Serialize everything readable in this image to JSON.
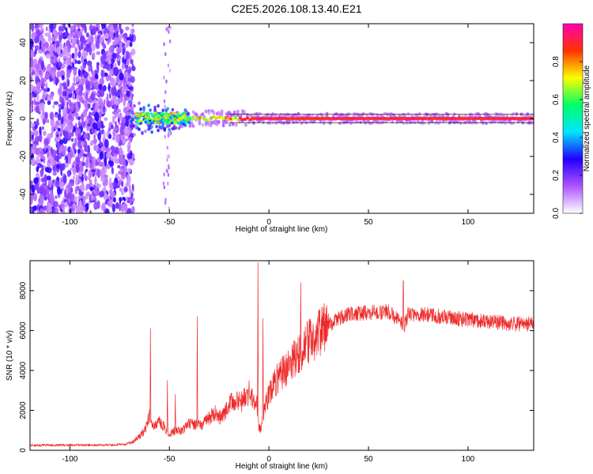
{
  "title": "C2E5.2026.108.13.40.E21",
  "chart_data": [
    {
      "type": "heatmap",
      "xlabel": "Height of straight line (km)",
      "ylabel": "Frequency (Hz)",
      "xlim": [
        -120,
        133
      ],
      "ylim": [
        -50,
        50
      ],
      "x_ticks": [
        -100,
        -50,
        0,
        50,
        100
      ],
      "y_ticks": [
        -40,
        -20,
        0,
        20,
        40
      ],
      "grid": false,
      "colorbar": {
        "label": "Normalized spectral amplitude",
        "range": [
          0,
          1
        ],
        "ticks": [
          "0.0",
          "0.2",
          "0.4",
          "0.6",
          "0.8"
        ],
        "colors": [
          "#ffffff",
          "#ad54ff",
          "#2200ff",
          "#00e5ff",
          "#00ff66",
          "#fcff00",
          "#ff3300",
          "#ff00b0"
        ]
      },
      "features": [
        {
          "name": "noise",
          "x_range": [
            -120,
            -70
          ],
          "y_range": [
            -50,
            50
          ],
          "amplitude": 0.2
        },
        {
          "name": "signal",
          "x_range": [
            -70,
            133
          ],
          "frequency": 0,
          "amplitude": 1.0
        }
      ]
    },
    {
      "type": "line",
      "xlabel": "Height of straight line (km)",
      "ylabel": "SNR (10 * v/v)",
      "xlim": [
        -120,
        133
      ],
      "ylim": [
        0,
        9500
      ],
      "x_ticks": [
        -100,
        -50,
        0,
        50,
        100
      ],
      "y_ticks": [
        0,
        2000,
        4000,
        6000,
        8000
      ],
      "color": "#ee2b2b",
      "grid": false,
      "envelope": {
        "x": [
          -120,
          -100,
          -80,
          -72,
          -68,
          -65,
          -62,
          -60,
          -58,
          -55,
          -52,
          -50,
          -47,
          -44,
          -40,
          -37,
          -34,
          -30,
          -27,
          -24,
          -20,
          -17,
          -14,
          -10,
          -8,
          -6,
          -5,
          -4,
          -3,
          -2,
          0,
          2,
          5,
          8,
          10,
          13,
          16,
          20,
          25,
          30,
          35,
          40,
          50,
          60,
          68,
          70,
          80,
          90,
          100,
          110,
          120,
          133
        ],
        "y": [
          250,
          260,
          270,
          300,
          450,
          700,
          1050,
          1800,
          1200,
          1400,
          1100,
          800,
          1000,
          950,
          1350,
          1300,
          1250,
          1600,
          1900,
          1600,
          2300,
          2500,
          2400,
          2900,
          2600,
          2300,
          1100,
          1000,
          1700,
          2200,
          2800,
          3200,
          3700,
          4000,
          4200,
          4600,
          4900,
          5400,
          5900,
          6300,
          6600,
          6800,
          6900,
          6950,
          6200,
          6850,
          6800,
          6650,
          6550,
          6450,
          6350,
          6300
        ]
      },
      "spikes": [
        {
          "x": -59.5,
          "y": 6100
        },
        {
          "x": -51,
          "y": 3500
        },
        {
          "x": -47,
          "y": 2800
        },
        {
          "x": -36,
          "y": 6700
        },
        {
          "x": -5.5,
          "y": 9400
        },
        {
          "x": -3,
          "y": 6600
        },
        {
          "x": 16,
          "y": 8400
        },
        {
          "x": 67.5,
          "y": 8500
        }
      ]
    }
  ]
}
